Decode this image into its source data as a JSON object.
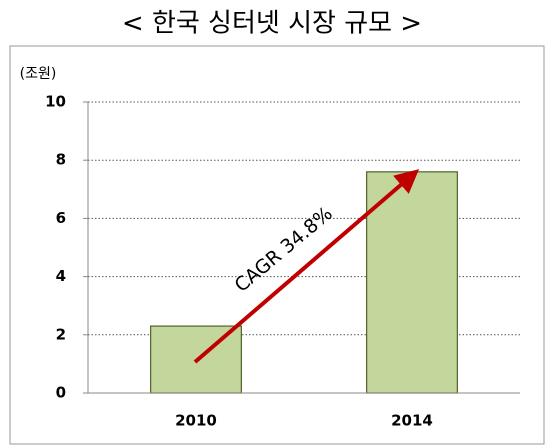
{
  "chart_data": {
    "type": "bar",
    "title": "< 한국 싱터넷 시장 규모 >",
    "y_label": "(조원)",
    "categories": [
      "2010",
      "2014"
    ],
    "values": [
      2.3,
      7.6
    ],
    "color": "#c3d69b",
    "ylim": [
      0,
      10
    ],
    "yticks": [
      0,
      2,
      4,
      6,
      8,
      10
    ],
    "grid": true,
    "annotation": "CAGR 34.8%"
  }
}
